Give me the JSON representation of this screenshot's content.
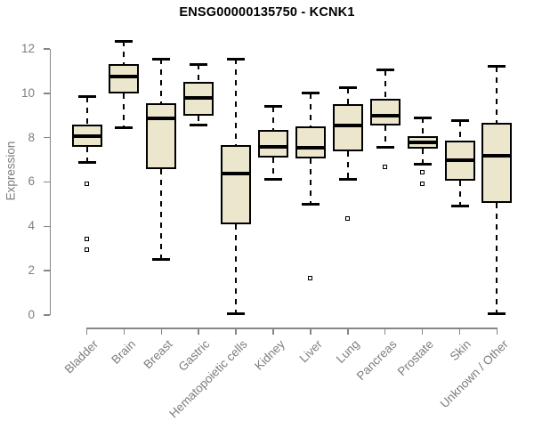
{
  "chart_data": {
    "type": "boxplot",
    "title": "ENSG00000135750 - KCNK1",
    "ylabel": "Expression",
    "xlabel": "",
    "ylim": [
      0,
      12
    ],
    "yticks": [
      0,
      2,
      4,
      6,
      8,
      10,
      12
    ],
    "grid": false,
    "legend": null,
    "categories": [
      "Bladder",
      "Brain",
      "Breast",
      "Gastric",
      "Hematopoietic cells",
      "Kidney",
      "Liver",
      "Lung",
      "Pancreas",
      "Prostate",
      "Skin",
      "Unknown / Other"
    ],
    "series": [
      {
        "name": "Bladder",
        "whisker_low": 6.9,
        "q1": 7.6,
        "median": 8.05,
        "q3": 8.6,
        "whisker_high": 9.85,
        "outliers": [
          5.9,
          3.45,
          2.95
        ]
      },
      {
        "name": "Brain",
        "whisker_low": 8.45,
        "q1": 10.0,
        "median": 10.75,
        "q3": 11.3,
        "whisker_high": 12.35,
        "outliers": []
      },
      {
        "name": "Breast",
        "whisker_low": 2.5,
        "q1": 6.6,
        "median": 8.85,
        "q3": 9.55,
        "whisker_high": 11.55,
        "outliers": []
      },
      {
        "name": "Gastric",
        "whisker_low": 8.55,
        "q1": 9.0,
        "median": 9.8,
        "q3": 10.5,
        "whisker_high": 11.3,
        "outliers": []
      },
      {
        "name": "Hematopoietic cells",
        "whisker_low": 0.05,
        "q1": 4.1,
        "median": 6.4,
        "q3": 7.65,
        "whisker_high": 11.55,
        "outliers": []
      },
      {
        "name": "Kidney",
        "whisker_low": 6.1,
        "q1": 7.1,
        "median": 7.6,
        "q3": 8.35,
        "whisker_high": 9.4,
        "outliers": []
      },
      {
        "name": "Liver",
        "whisker_low": 5.0,
        "q1": 7.05,
        "median": 7.55,
        "q3": 8.5,
        "whisker_high": 10.0,
        "outliers": [
          1.65
        ]
      },
      {
        "name": "Lung",
        "whisker_low": 6.1,
        "q1": 7.4,
        "median": 8.55,
        "q3": 9.5,
        "whisker_high": 10.25,
        "outliers": [
          4.35
        ]
      },
      {
        "name": "Pancreas",
        "whisker_low": 7.55,
        "q1": 8.55,
        "median": 9.0,
        "q3": 9.75,
        "whisker_high": 11.05,
        "outliers": [
          6.7
        ]
      },
      {
        "name": "Prostate",
        "whisker_low": 6.8,
        "q1": 7.5,
        "median": 7.8,
        "q3": 8.05,
        "whisker_high": 8.9,
        "outliers": [
          6.45,
          5.9
        ]
      },
      {
        "name": "Skin",
        "whisker_low": 4.9,
        "q1": 6.05,
        "median": 7.0,
        "q3": 7.85,
        "whisker_high": 8.75,
        "outliers": []
      },
      {
        "name": "Unknown / Other",
        "whisker_low": 0.05,
        "q1": 5.05,
        "median": 7.2,
        "q3": 8.65,
        "whisker_high": 11.2,
        "outliers": []
      }
    ],
    "colors": {
      "box_fill": "#ECE6CD",
      "box_border": "#000000",
      "median": "#000000",
      "whisker": "#000000",
      "axis": "#868686",
      "axis_text": "#7d7d7d",
      "title": "#000000",
      "background": "#ffffff"
    }
  }
}
